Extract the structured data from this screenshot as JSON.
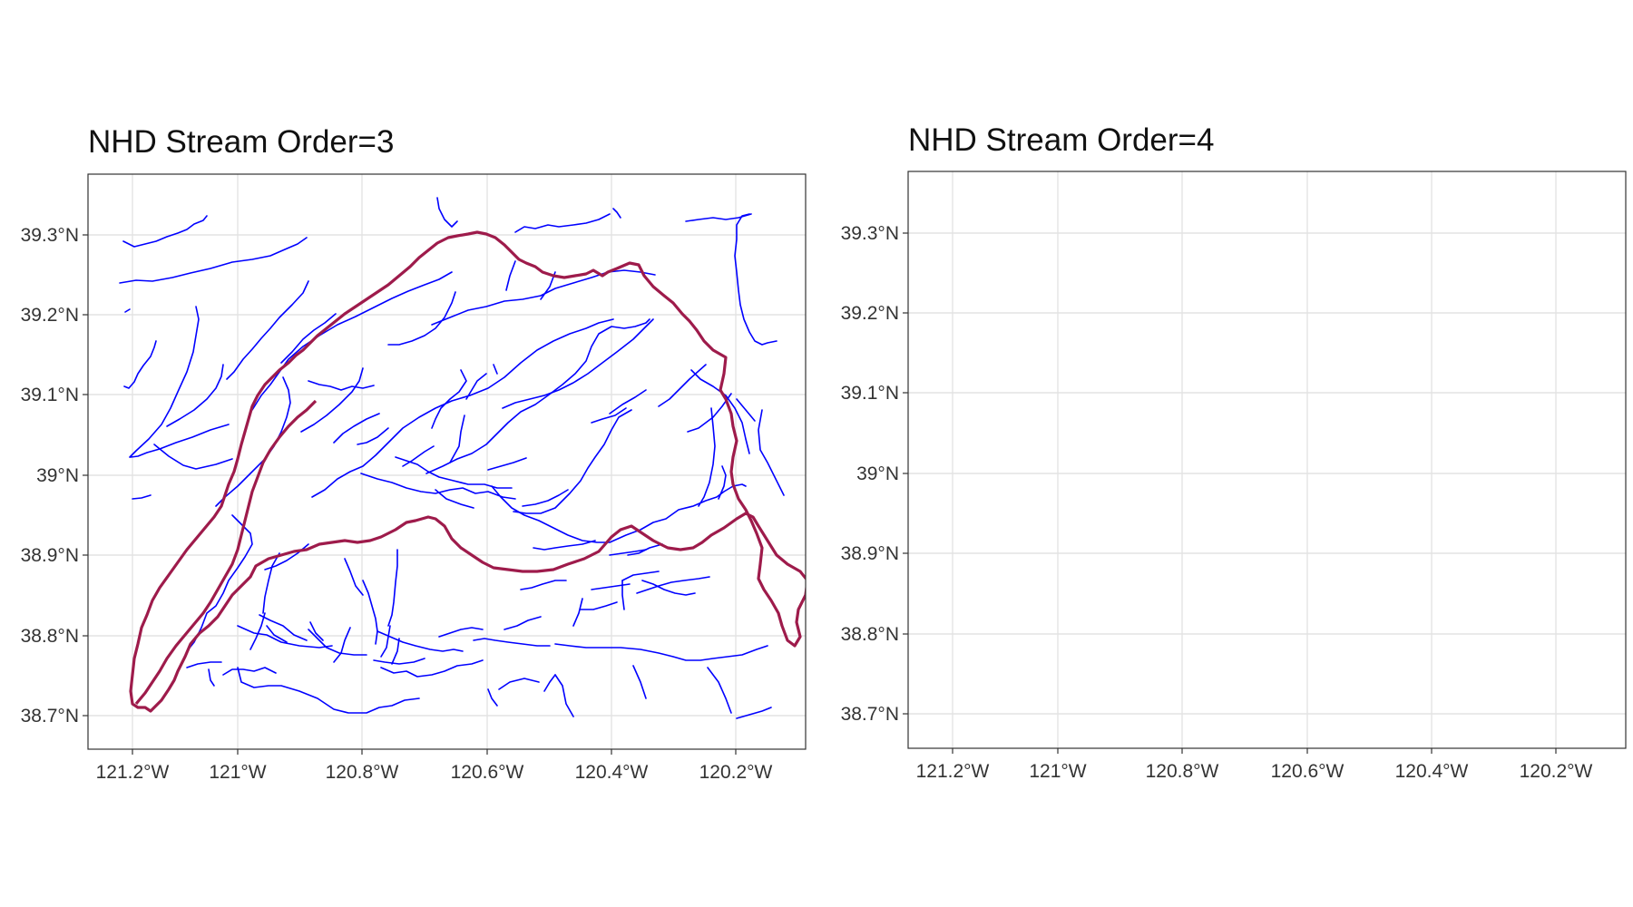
{
  "panels": [
    {
      "title": "NHD Stream Order=3",
      "x_ticks": [
        "121.2°W",
        "121°W",
        "120.8°W",
        "120.6°W",
        "120.4°W",
        "120.2°W"
      ],
      "y_ticks": [
        "38.7°N",
        "38.8°N",
        "38.9°N",
        "39°N",
        "39.1°N",
        "39.2°N",
        "39.3°N"
      ]
    },
    {
      "title": "NHD Stream Order=4",
      "x_ticks": [
        "121.2°W",
        "121°W",
        "120.8°W",
        "120.6°W",
        "120.4°W",
        "120.2°W"
      ],
      "y_ticks": [
        "38.7°N",
        "38.8°N",
        "38.9°N",
        "39°N",
        "39.1°N",
        "39.2°N",
        "39.3°N"
      ]
    }
  ],
  "colors": {
    "stream": "#0000ff",
    "boundary": "#9e1b4b",
    "grid": "#e3e3e3",
    "frame": "#333333",
    "text": "#333333"
  }
}
